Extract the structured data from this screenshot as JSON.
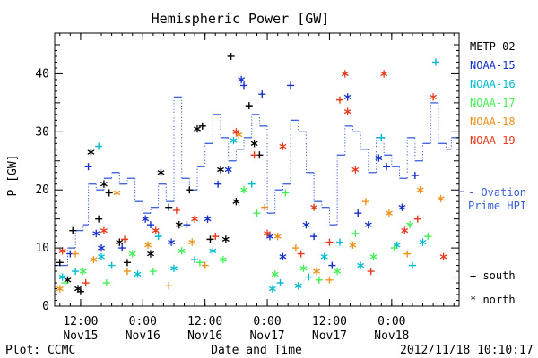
{
  "chart_data": {
    "type": "scatter",
    "title": "Hemispheric Power [GW]",
    "ylabel": "P [GW]",
    "xlabel": "Date and Time",
    "ylim": [
      0,
      47
    ],
    "xlim": [
      "2012-11-15 07:00",
      "2012-11-18 13:00"
    ],
    "y_ticks": [
      0,
      10,
      20,
      30,
      40
    ],
    "x_ticks": [
      {
        "time": "2012-11-15 12:00",
        "line1": "12:00",
        "line2": "Nov15"
      },
      {
        "time": "2012-11-16 00:00",
        "line1": "0:00",
        "line2": "Nov16"
      },
      {
        "time": "2012-11-16 12:00",
        "line1": "12:00",
        "line2": "Nov16"
      },
      {
        "time": "2012-11-17 00:00",
        "line1": "0:00",
        "line2": "Nov17"
      },
      {
        "time": "2012-11-17 12:00",
        "line1": "12:00",
        "line2": "Nov17"
      },
      {
        "time": "2012-11-18 00:00",
        "line1": "0:00",
        "line2": "Nov18"
      }
    ],
    "symbol_legend": [
      {
        "symbol": "+",
        "label": "south"
      },
      {
        "symbol": "*",
        "label": "north"
      }
    ],
    "series": [
      {
        "name": "METP-02",
        "color": "#000000",
        "points": [
          [
            "2012-11-15 08:00",
            7.5,
            "+"
          ],
          [
            "2012-11-15 09:30",
            4.5,
            "*"
          ],
          [
            "2012-11-15 10:30",
            13,
            "+"
          ],
          [
            "2012-11-15 11:30",
            3,
            "*"
          ],
          [
            "2012-11-15 12:00",
            2.5,
            "+"
          ],
          [
            "2012-11-15 14:00",
            26.5,
            "*"
          ],
          [
            "2012-11-15 15:30",
            15,
            "+"
          ],
          [
            "2012-11-15 16:30",
            21,
            "*"
          ],
          [
            "2012-11-15 17:30",
            19.5,
            "+"
          ],
          [
            "2012-11-15 19:30",
            11,
            "*"
          ],
          [
            "2012-11-15 21:00",
            7.5,
            "+"
          ],
          [
            "2012-11-16 01:30",
            9,
            "*"
          ],
          [
            "2012-11-16 03:30",
            23,
            "*"
          ],
          [
            "2012-11-16 05:00",
            17,
            "+"
          ],
          [
            "2012-11-16 07:00",
            14,
            "*"
          ],
          [
            "2012-11-16 09:00",
            20,
            "+"
          ],
          [
            "2012-11-16 10:30",
            30.5,
            "*"
          ],
          [
            "2012-11-16 11:30",
            31,
            "+"
          ],
          [
            "2012-11-16 13:00",
            11.5,
            "+"
          ],
          [
            "2012-11-16 15:00",
            23.5,
            "*"
          ],
          [
            "2012-11-16 17:00",
            43,
            "+"
          ],
          [
            "2012-11-16 18:00",
            18,
            "*"
          ],
          [
            "2012-11-16 20:30",
            34.5,
            "+"
          ],
          [
            "2012-11-16 21:30",
            28,
            "*"
          ],
          [
            "2012-11-16 22:30",
            26,
            "+"
          ],
          [
            "2012-11-16 16:00",
            11.5,
            "*"
          ]
        ]
      },
      {
        "name": "NOAA-15",
        "color": "#1530cc",
        "points": [
          [
            "2012-11-15 10:00",
            9,
            "+"
          ],
          [
            "2012-11-15 13:30",
            24,
            "+"
          ],
          [
            "2012-11-15 15:00",
            12.5,
            "*"
          ],
          [
            "2012-11-15 16:00",
            10,
            "*"
          ],
          [
            "2012-11-15 20:00",
            10,
            "+"
          ],
          [
            "2012-11-16 00:30",
            15,
            "*"
          ],
          [
            "2012-11-16 01:30",
            14,
            "+"
          ],
          [
            "2012-11-16 05:30",
            11,
            "*"
          ],
          [
            "2012-11-16 08:30",
            14,
            "+"
          ],
          [
            "2012-11-16 12:30",
            15,
            "*"
          ],
          [
            "2012-11-16 14:30",
            21,
            "+"
          ],
          [
            "2012-11-16 16:30",
            23.5,
            "*"
          ],
          [
            "2012-11-16 19:00",
            39,
            "*"
          ],
          [
            "2012-11-16 19:30",
            38,
            "+"
          ],
          [
            "2012-11-16 23:00",
            36.5,
            "+"
          ],
          [
            "2012-11-17 00:30",
            12,
            "*"
          ],
          [
            "2012-11-17 03:00",
            8.5,
            "*"
          ],
          [
            "2012-11-17 04:30",
            38,
            "+"
          ],
          [
            "2012-11-17 07:30",
            14,
            "*"
          ],
          [
            "2012-11-17 09:00",
            12,
            "+"
          ],
          [
            "2012-11-17 12:30",
            7,
            "+"
          ],
          [
            "2012-11-17 15:30",
            36,
            "*"
          ],
          [
            "2012-11-17 17:30",
            16,
            "+"
          ],
          [
            "2012-11-17 19:30",
            14,
            "*"
          ],
          [
            "2012-11-17 21:30",
            25.5,
            "*"
          ],
          [
            "2012-11-17 23:00",
            24,
            "+"
          ],
          [
            "2012-11-18 02:00",
            17,
            "*"
          ],
          [
            "2012-11-18 04:30",
            22.5,
            "+"
          ]
        ]
      },
      {
        "name": "NOAA-16",
        "color": "#00bbd0",
        "points": [
          [
            "2012-11-15 08:30",
            5,
            "*"
          ],
          [
            "2012-11-15 11:00",
            6,
            "+"
          ],
          [
            "2012-11-15 15:30",
            27.5,
            "+"
          ],
          [
            "2012-11-15 16:00",
            8.5,
            "*"
          ],
          [
            "2012-11-15 18:00",
            7,
            "+"
          ],
          [
            "2012-11-15 23:00",
            5.5,
            "*"
          ],
          [
            "2012-11-16 03:00",
            12,
            "+"
          ],
          [
            "2012-11-16 06:00",
            6.5,
            "*"
          ],
          [
            "2012-11-16 10:00",
            8,
            "+"
          ],
          [
            "2012-11-16 13:30",
            9.5,
            "*"
          ],
          [
            "2012-11-16 17:30",
            28.5,
            "*"
          ],
          [
            "2012-11-16 21:00",
            21,
            "+"
          ],
          [
            "2012-11-17 01:00",
            3,
            "*"
          ],
          [
            "2012-11-17 02:30",
            4,
            "+"
          ],
          [
            "2012-11-17 06:00",
            3.5,
            "*"
          ],
          [
            "2012-11-17 08:00",
            5,
            "+"
          ],
          [
            "2012-11-17 11:00",
            8.5,
            "*"
          ],
          [
            "2012-11-17 14:00",
            11,
            "+"
          ],
          [
            "2012-11-17 18:00",
            7,
            "*"
          ],
          [
            "2012-11-17 22:00",
            29,
            "+"
          ],
          [
            "2012-11-18 01:00",
            10.5,
            "*"
          ],
          [
            "2012-11-18 04:00",
            7,
            "+"
          ],
          [
            "2012-11-18 08:30",
            42,
            "+"
          ],
          [
            "2012-11-18 06:00",
            11,
            "*"
          ]
        ]
      },
      {
        "name": "NOAA-17",
        "color": "#44ee55",
        "points": [
          [
            "2012-11-15 09:00",
            4,
            "+"
          ],
          [
            "2012-11-15 12:30",
            6,
            "*"
          ],
          [
            "2012-11-15 17:00",
            4,
            "+"
          ],
          [
            "2012-11-15 22:00",
            9,
            "*"
          ],
          [
            "2012-11-16 02:00",
            6,
            "+"
          ],
          [
            "2012-11-16 07:30",
            9.5,
            "*"
          ],
          [
            "2012-11-16 11:00",
            7.5,
            "+"
          ],
          [
            "2012-11-16 15:30",
            8,
            "*"
          ],
          [
            "2012-11-16 19:30",
            20,
            "*"
          ],
          [
            "2012-11-16 22:00",
            16,
            "+"
          ],
          [
            "2012-11-17 01:30",
            5.5,
            "*"
          ],
          [
            "2012-11-17 03:30",
            19.5,
            "+"
          ],
          [
            "2012-11-17 07:00",
            6.5,
            "*"
          ],
          [
            "2012-11-17 10:00",
            4.5,
            "+"
          ],
          [
            "2012-11-17 13:30",
            6,
            "*"
          ],
          [
            "2012-11-17 17:00",
            12.5,
            "+"
          ],
          [
            "2012-11-17 20:30",
            8.5,
            "*"
          ],
          [
            "2012-11-18 00:30",
            10,
            "+"
          ],
          [
            "2012-11-18 03:30",
            14,
            "*"
          ],
          [
            "2012-11-18 07:00",
            12,
            "+"
          ]
        ]
      },
      {
        "name": "NOAA-18",
        "color": "#f0901a",
        "points": [
          [
            "2012-11-15 08:00",
            3,
            "*"
          ],
          [
            "2012-11-15 11:00",
            9,
            "+"
          ],
          [
            "2012-11-15 14:30",
            8,
            "*"
          ],
          [
            "2012-11-15 19:00",
            19.5,
            "*"
          ],
          [
            "2012-11-15 21:00",
            6,
            "+"
          ],
          [
            "2012-11-16 01:00",
            10.5,
            "*"
          ],
          [
            "2012-11-16 05:00",
            3.5,
            "+"
          ],
          [
            "2012-11-16 09:30",
            11,
            "*"
          ],
          [
            "2012-11-16 12:00",
            7,
            "+"
          ],
          [
            "2012-11-16 18:30",
            29.5,
            "*"
          ],
          [
            "2012-11-16 23:30",
            17,
            "+"
          ],
          [
            "2012-11-17 02:00",
            12,
            "*"
          ],
          [
            "2012-11-17 05:30",
            10,
            "+"
          ],
          [
            "2012-11-17 09:30",
            6,
            "*"
          ],
          [
            "2012-11-17 12:00",
            4.5,
            "+"
          ],
          [
            "2012-11-17 16:30",
            10.5,
            "*"
          ],
          [
            "2012-11-17 19:00",
            18,
            "+"
          ],
          [
            "2012-11-17 23:30",
            16,
            "*"
          ],
          [
            "2012-11-18 03:00",
            9,
            "+"
          ],
          [
            "2012-11-18 05:30",
            20,
            "*"
          ],
          [
            "2012-11-18 09:30",
            18.5,
            "*"
          ]
        ]
      },
      {
        "name": "NOAA-19",
        "color": "#e83a1a",
        "points": [
          [
            "2012-11-15 08:30",
            9.5,
            "*"
          ],
          [
            "2012-11-15 13:00",
            4,
            "+"
          ],
          [
            "2012-11-15 16:30",
            13,
            "*"
          ],
          [
            "2012-11-15 20:30",
            11.5,
            "+"
          ],
          [
            "2012-11-16 02:30",
            13,
            "*"
          ],
          [
            "2012-11-16 06:30",
            16.5,
            "+"
          ],
          [
            "2012-11-16 10:00",
            15,
            "*"
          ],
          [
            "2012-11-16 14:00",
            12,
            "+"
          ],
          [
            "2012-11-16 18:00",
            30,
            "*"
          ],
          [
            "2012-11-16 21:30",
            26,
            "+"
          ],
          [
            "2012-11-17 00:00",
            12.5,
            "*"
          ],
          [
            "2012-11-17 03:00",
            27.5,
            "*"
          ],
          [
            "2012-11-17 06:30",
            9,
            "+"
          ],
          [
            "2012-11-17 09:00",
            17,
            "*"
          ],
          [
            "2012-11-17 12:00",
            11,
            "+"
          ],
          [
            "2012-11-17 14:00",
            35.5,
            "+"
          ],
          [
            "2012-11-17 15:00",
            40,
            "*"
          ],
          [
            "2012-11-17 15:30",
            33.5,
            "*"
          ],
          [
            "2012-11-17 17:00",
            23.5,
            "*"
          ],
          [
            "2012-11-17 20:00",
            6,
            "+"
          ],
          [
            "2012-11-17 22:30",
            40,
            "*"
          ],
          [
            "2012-11-18 02:30",
            13,
            "*"
          ],
          [
            "2012-11-18 05:00",
            15,
            "+"
          ],
          [
            "2012-11-18 08:00",
            36,
            "*"
          ],
          [
            "2012-11-18 10:00",
            8.5,
            "*"
          ]
        ]
      },
      {
        "name": "Ovation Prime HPI",
        "legend_lines": [
          "- Ovation",
          "Prime HPI"
        ],
        "color": "#3a5fd8",
        "style": "step-dotted",
        "points": [
          [
            "2012-11-15 07:00",
            7
          ],
          [
            "2012-11-15 09:30",
            10
          ],
          [
            "2012-11-15 11:00",
            13
          ],
          [
            "2012-11-15 12:30",
            14
          ],
          [
            "2012-11-15 13:30",
            21
          ],
          [
            "2012-11-15 15:00",
            20
          ],
          [
            "2012-11-15 16:30",
            22
          ],
          [
            "2012-11-15 18:00",
            23
          ],
          [
            "2012-11-15 19:30",
            21
          ],
          [
            "2012-11-15 21:00",
            22
          ],
          [
            "2012-11-15 22:30",
            18
          ],
          [
            "2012-11-16 00:00",
            16
          ],
          [
            "2012-11-16 01:30",
            17
          ],
          [
            "2012-11-16 03:00",
            21
          ],
          [
            "2012-11-16 04:30",
            18
          ],
          [
            "2012-11-16 06:00",
            36
          ],
          [
            "2012-11-16 07:30",
            22
          ],
          [
            "2012-11-16 09:00",
            20
          ],
          [
            "2012-11-16 10:30",
            24
          ],
          [
            "2012-11-16 12:00",
            28
          ],
          [
            "2012-11-16 13:30",
            33
          ],
          [
            "2012-11-16 15:00",
            29
          ],
          [
            "2012-11-16 16:30",
            25
          ],
          [
            "2012-11-16 18:00",
            27
          ],
          [
            "2012-11-16 19:30",
            29
          ],
          [
            "2012-11-16 21:00",
            33
          ],
          [
            "2012-11-16 22:30",
            31
          ],
          [
            "2012-11-17 00:00",
            16
          ],
          [
            "2012-11-17 01:30",
            20
          ],
          [
            "2012-11-17 03:00",
            21
          ],
          [
            "2012-11-17 04:30",
            32
          ],
          [
            "2012-11-17 06:00",
            30
          ],
          [
            "2012-11-17 07:30",
            23
          ],
          [
            "2012-11-17 09:00",
            18
          ],
          [
            "2012-11-17 10:30",
            17
          ],
          [
            "2012-11-17 12:00",
            14
          ],
          [
            "2012-11-17 13:30",
            26
          ],
          [
            "2012-11-17 15:00",
            31
          ],
          [
            "2012-11-17 16:30",
            30
          ],
          [
            "2012-11-17 18:00",
            27
          ],
          [
            "2012-11-17 19:30",
            23
          ],
          [
            "2012-11-17 21:00",
            29
          ],
          [
            "2012-11-17 22:30",
            26
          ],
          [
            "2012-11-18 00:00",
            24
          ],
          [
            "2012-11-18 01:30",
            22
          ],
          [
            "2012-11-18 03:00",
            29
          ],
          [
            "2012-11-18 04:30",
            25
          ],
          [
            "2012-11-18 06:00",
            28
          ],
          [
            "2012-11-18 07:30",
            35
          ],
          [
            "2012-11-18 09:00",
            28
          ],
          [
            "2012-11-18 10:30",
            27
          ],
          [
            "2012-11-18 11:30",
            29
          ],
          [
            "2012-11-18 13:00",
            29
          ]
        ]
      }
    ]
  },
  "footer": {
    "left": "Plot: CCMC",
    "right": "2012/11/18 10:10:17"
  }
}
